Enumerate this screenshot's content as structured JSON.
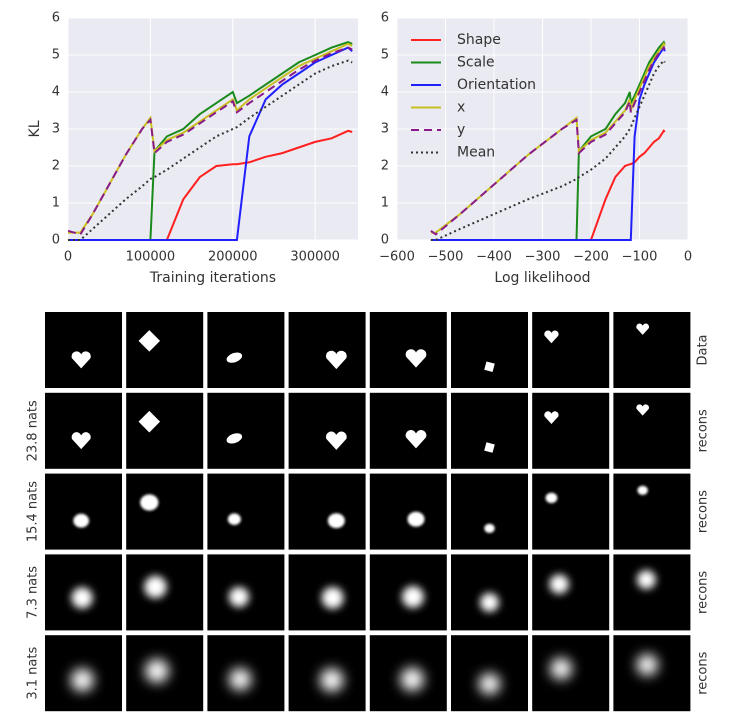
{
  "chart_data": [
    {
      "type": "line",
      "ylabel": "KL",
      "xlabel": "Training iterations",
      "xlim": [
        0,
        352000
      ],
      "ylim": [
        0,
        6
      ],
      "xticks": [
        0,
        100000,
        200000,
        300000
      ],
      "yticks": [
        0,
        1,
        2,
        3,
        4,
        5,
        6
      ],
      "grid": true,
      "legend": false,
      "x": [
        0,
        15000,
        30000,
        50000,
        70000,
        90000,
        100000,
        105000,
        120000,
        140000,
        160000,
        180000,
        200000,
        205000,
        220000,
        240000,
        260000,
        280000,
        300000,
        320000,
        340000,
        345000
      ],
      "series": [
        {
          "color": "#ff2020",
          "dash": "solid",
          "values": [
            0,
            0,
            0,
            0,
            0,
            0,
            0,
            0,
            0,
            1.1,
            1.7,
            2.0,
            2.05,
            2.05,
            2.1,
            2.25,
            2.35,
            2.5,
            2.65,
            2.75,
            2.95,
            2.92
          ]
        },
        {
          "color": "#1a8a1a",
          "dash": "solid",
          "values": [
            0,
            0,
            0,
            0,
            0,
            0,
            0,
            2.4,
            2.8,
            3.0,
            3.4,
            3.7,
            4.0,
            3.7,
            3.9,
            4.2,
            4.5,
            4.8,
            5.0,
            5.2,
            5.35,
            5.3
          ]
        },
        {
          "color": "#2020ff",
          "dash": "solid",
          "values": [
            0,
            0,
            0,
            0,
            0,
            0,
            0,
            0,
            0,
            0,
            0,
            0,
            0,
            0,
            2.8,
            3.8,
            4.2,
            4.5,
            4.8,
            5.0,
            5.2,
            5.1
          ]
        },
        {
          "color": "#c8c020",
          "dash": "solid",
          "values": [
            0.2,
            0.2,
            0.7,
            1.5,
            2.3,
            3.0,
            3.3,
            2.4,
            2.7,
            2.9,
            3.2,
            3.5,
            3.8,
            3.5,
            3.8,
            4.1,
            4.4,
            4.7,
            4.9,
            5.1,
            5.3,
            5.25
          ]
        },
        {
          "color": "#8a1a8a",
          "dash": "dashed",
          "values": [
            0.25,
            0.15,
            0.7,
            1.5,
            2.3,
            3.0,
            3.25,
            2.35,
            2.65,
            2.85,
            3.15,
            3.45,
            3.75,
            3.45,
            3.7,
            4.0,
            4.3,
            4.6,
            4.85,
            5.05,
            5.2,
            5.15
          ]
        },
        {
          "color": "#333333",
          "dash": "dotted",
          "values": [
            0,
            0,
            0.3,
            0.7,
            1.1,
            1.45,
            1.65,
            1.7,
            1.9,
            2.2,
            2.5,
            2.8,
            3.0,
            3.05,
            3.3,
            3.6,
            3.9,
            4.2,
            4.5,
            4.7,
            4.85,
            4.8
          ]
        }
      ]
    },
    {
      "type": "line",
      "xlabel": "Log likelihood",
      "xlim": [
        -600,
        0
      ],
      "ylim": [
        0,
        6
      ],
      "xticks": [
        {
          "value": -600,
          "label": "−600"
        },
        {
          "value": -500,
          "label": "−500"
        },
        {
          "value": -400,
          "label": "−400"
        },
        {
          "value": -300,
          "label": "−300"
        },
        {
          "value": -200,
          "label": "−200"
        },
        {
          "value": -100,
          "label": "−100"
        },
        0
      ],
      "yticks": [
        0,
        1,
        2,
        3,
        4,
        5,
        6
      ],
      "grid": true,
      "legend": "upper left",
      "x": [
        -530,
        -520,
        -470,
        -400,
        -330,
        -260,
        -230,
        -225,
        -200,
        -170,
        -150,
        -130,
        -120,
        -118,
        -110,
        -100,
        -90,
        -80,
        -70,
        -60,
        -50,
        -48
      ],
      "series": [
        {
          "name": "Shape",
          "color": "#ff2020",
          "dash": "solid",
          "values": [
            0,
            0,
            0,
            0,
            0,
            0,
            0,
            0,
            0,
            1.1,
            1.7,
            2.0,
            2.05,
            2.05,
            2.1,
            2.25,
            2.35,
            2.5,
            2.65,
            2.75,
            2.95,
            2.92
          ]
        },
        {
          "name": "Scale",
          "color": "#1a8a1a",
          "dash": "solid",
          "values": [
            0,
            0,
            0,
            0,
            0,
            0,
            0,
            2.4,
            2.8,
            3.0,
            3.4,
            3.7,
            4.0,
            3.7,
            3.9,
            4.2,
            4.5,
            4.8,
            5.0,
            5.2,
            5.35,
            5.3
          ]
        },
        {
          "name": "Orientation",
          "color": "#2020ff",
          "dash": "solid",
          "values": [
            0,
            0,
            0,
            0,
            0,
            0,
            0,
            0,
            0,
            0,
            0,
            0,
            0,
            0,
            2.8,
            3.8,
            4.2,
            4.5,
            4.8,
            5.0,
            5.2,
            5.1
          ]
        },
        {
          "name": "x",
          "color": "#c8c020",
          "dash": "solid",
          "values": [
            0.2,
            0.2,
            0.7,
            1.5,
            2.3,
            3.0,
            3.3,
            2.4,
            2.7,
            2.9,
            3.2,
            3.5,
            3.8,
            3.5,
            3.8,
            4.1,
            4.4,
            4.7,
            4.9,
            5.1,
            5.3,
            5.25
          ]
        },
        {
          "name": "y",
          "color": "#8a1a8a",
          "dash": "dashed",
          "values": [
            0.25,
            0.15,
            0.7,
            1.5,
            2.3,
            3.0,
            3.25,
            2.35,
            2.65,
            2.85,
            3.15,
            3.45,
            3.75,
            3.45,
            3.7,
            4.0,
            4.3,
            4.6,
            4.85,
            5.05,
            5.2,
            5.15
          ]
        },
        {
          "name": "Mean",
          "color": "#333333",
          "dash": "dotted",
          "values": [
            0,
            0,
            0.3,
            0.7,
            1.1,
            1.45,
            1.65,
            1.7,
            1.9,
            2.2,
            2.5,
            2.8,
            3.0,
            3.05,
            3.3,
            3.6,
            3.9,
            4.2,
            4.5,
            4.7,
            4.85,
            4.8
          ]
        }
      ]
    }
  ],
  "image_grid": {
    "rows": [
      {
        "right_label": "Data"
      },
      {
        "left_label": "23.8 nats",
        "right_label": "recons"
      },
      {
        "left_label": "15.4 nats",
        "right_label": "recons"
      },
      {
        "left_label": "7.3 nats",
        "right_label": "recons"
      },
      {
        "left_label": "3.1 nats",
        "right_label": "recons"
      }
    ]
  }
}
